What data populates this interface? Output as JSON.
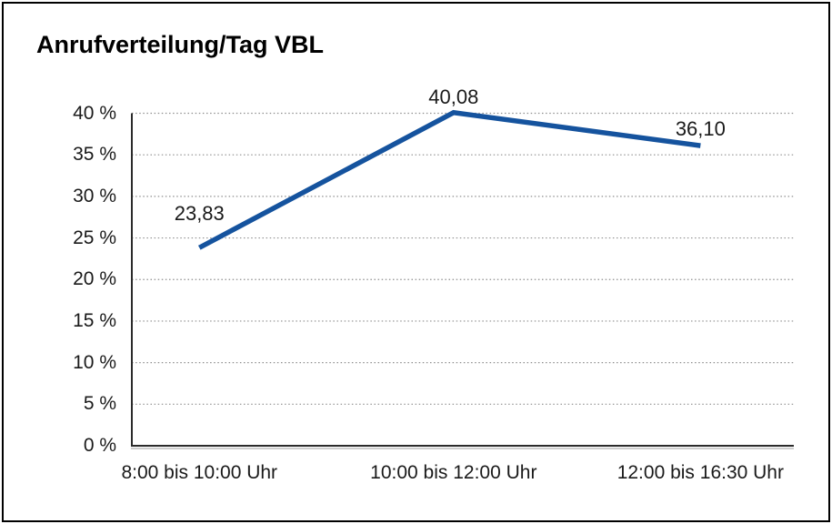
{
  "window": {
    "background": "#ffffff",
    "border_color": "#000000"
  },
  "chart_data": {
    "type": "line",
    "title": "Anrufverteilung/Tag VBL",
    "categories": [
      "8:00 bis 10:00 Uhr",
      "10:00 bis 12:00 Uhr",
      "12:00 bis 16:30 Uhr"
    ],
    "series": [
      {
        "values": [
          23.83,
          40.08,
          36.1
        ],
        "point_labels": [
          "23,83",
          "40,08",
          "36,10"
        ],
        "color": "#15539e"
      }
    ],
    "y_axis": {
      "min": 0,
      "max": 40,
      "step": 5,
      "unit": "%",
      "tick_labels": [
        "0 %",
        "5 %",
        "10 %",
        "15 %",
        "20 %",
        "25 %",
        "30 %",
        "35 %",
        "40 %"
      ]
    },
    "grid": {
      "horizontal": true,
      "style": "dotted",
      "color": "#8f8f8f"
    },
    "legend": "none",
    "axis_color": "#2b2b2b",
    "axis_shadow_color": "#b0b0b0",
    "text_color": "#1a1a1a"
  }
}
